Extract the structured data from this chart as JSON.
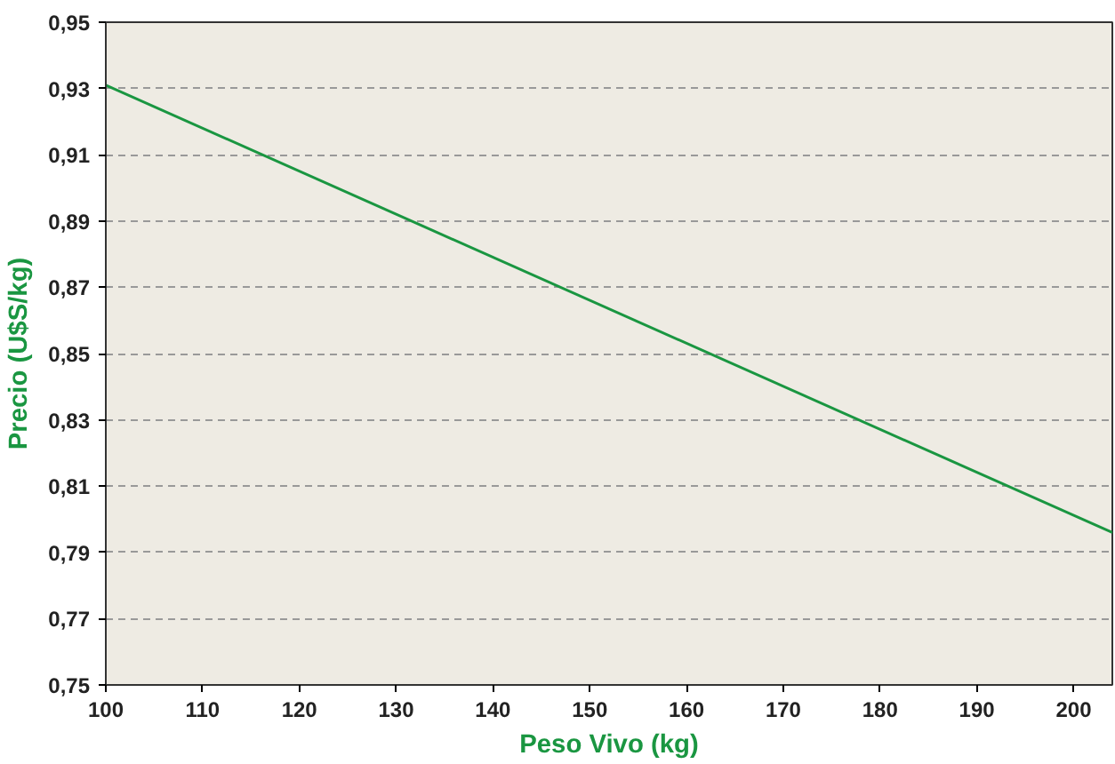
{
  "chart_data": {
    "type": "line",
    "xlabel": "Peso Vivo (kg)",
    "ylabel": "Precio (U$S/kg)",
    "x": [
      100,
      204
    ],
    "series": [
      {
        "color": "#1a9641",
        "values": [
          0.931,
          0.796
        ]
      }
    ],
    "xlim": [
      100,
      204
    ],
    "xticks": [
      100,
      110,
      120,
      130,
      140,
      150,
      160,
      170,
      180,
      190,
      200
    ],
    "ylim": [
      0.75,
      0.95
    ],
    "yticks": [
      {
        "value": 0.75,
        "label": "0,75"
      },
      {
        "value": 0.77,
        "label": "0,77"
      },
      {
        "value": 0.79,
        "label": "0,79"
      },
      {
        "value": 0.81,
        "label": "0,81"
      },
      {
        "value": 0.83,
        "label": "0,83"
      },
      {
        "value": 0.85,
        "label": "0,85"
      },
      {
        "value": 0.87,
        "label": "0,87"
      },
      {
        "value": 0.89,
        "label": "0,89"
      },
      {
        "value": 0.91,
        "label": "0,91"
      },
      {
        "value": 0.93,
        "label": "0,93"
      },
      {
        "value": 0.95,
        "label": "0,95"
      }
    ],
    "grid": "y",
    "line_style": "solid"
  }
}
